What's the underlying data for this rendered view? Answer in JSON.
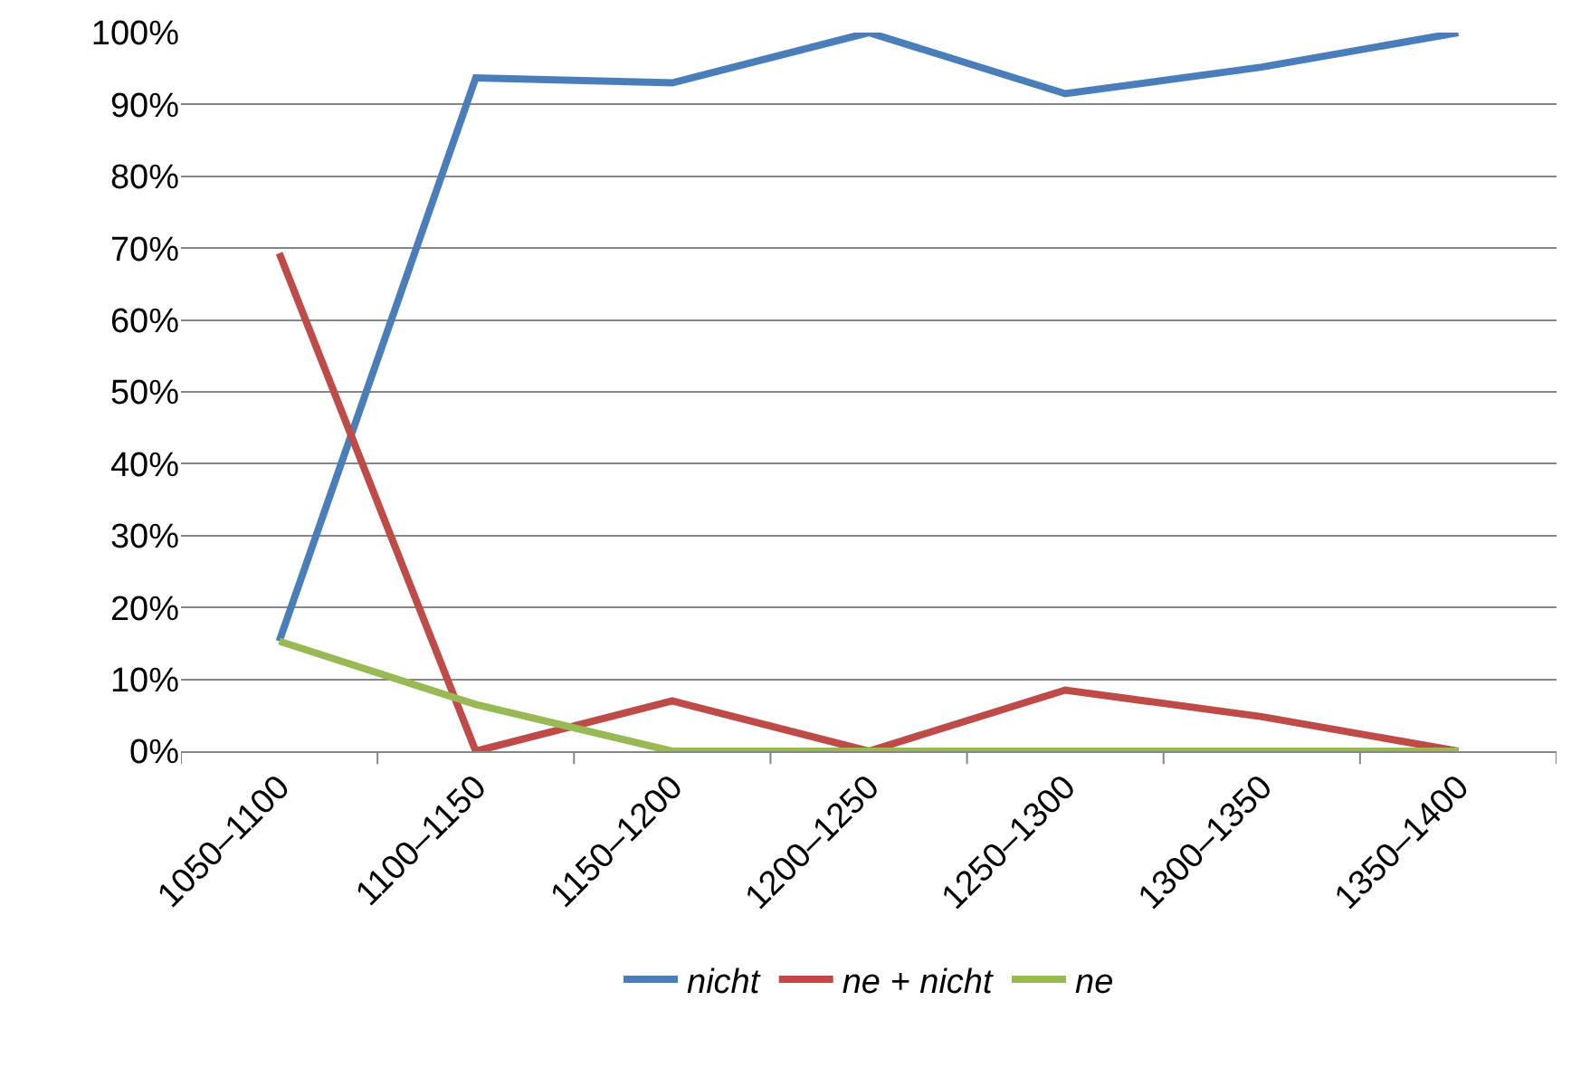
{
  "chart_data": {
    "type": "line",
    "categories": [
      "1050–1100",
      "1100–1150",
      "1150–1200",
      "1200–1250",
      "1250–1300",
      "1300–1350",
      "1350–1400"
    ],
    "series": [
      {
        "name": "nicht",
        "color": "#4a7ebb",
        "values": [
          15.3,
          93.7,
          93.0,
          100,
          91.5,
          95.2,
          100
        ]
      },
      {
        "name": "ne + nicht",
        "color": "#be4b48",
        "values": [
          69.3,
          0,
          7.0,
          0,
          8.5,
          4.8,
          0
        ]
      },
      {
        "name": "ne",
        "color": "#98b954",
        "values": [
          15.3,
          6.5,
          0,
          0,
          0,
          0,
          0
        ]
      }
    ],
    "ylim": [
      0,
      100
    ],
    "yticks": [
      {
        "value": 0,
        "label": "0%"
      },
      {
        "value": 10,
        "label": "10%"
      },
      {
        "value": 20,
        "label": "20%"
      },
      {
        "value": 30,
        "label": "30%"
      },
      {
        "value": 40,
        "label": "40%"
      },
      {
        "value": 50,
        "label": "50%"
      },
      {
        "value": 60,
        "label": "60%"
      },
      {
        "value": 70,
        "label": "70%"
      },
      {
        "value": 80,
        "label": "80%"
      },
      {
        "value": 90,
        "label": "90%"
      },
      {
        "value": 100,
        "label": "100%"
      }
    ],
    "grid": "y",
    "legend": "bottom",
    "marker": "none",
    "line_style": "solid"
  }
}
